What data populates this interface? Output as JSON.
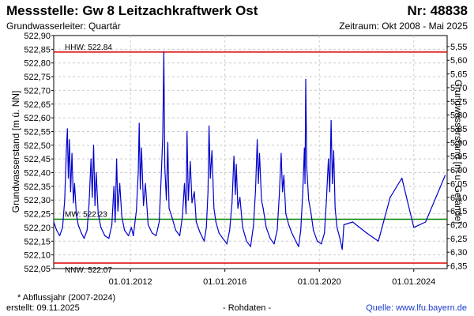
{
  "header": {
    "title": "Messstelle: Gw 8 Leitzachkraftwerk Ost",
    "number": "Nr: 48838",
    "aquifer": "Grundwasserleiter: Quartär",
    "period": "Zeitraum: Okt 2008 - Mai 2025"
  },
  "footer": {
    "note": "* Abflussjahr (2007-2024)",
    "created": "erstellt:  09.11.2025",
    "raw": "- Rohdaten -",
    "source": "Quelle: www.lfu.bayern.de"
  },
  "colors": {
    "series": "#0000cc",
    "hhw": "#dd0000",
    "nnw": "#dd0000",
    "mw": "#008000",
    "grid": "#cccccc"
  },
  "chart_data": {
    "type": "line",
    "ylabel": "Grundwasserstand [m ü. NN]",
    "y2label": "Grundwasserstand [m u. Gelände]",
    "ylim": [
      522.05,
      522.9
    ],
    "y2lim": [
      6.36,
      5.51
    ],
    "xlim": [
      "2008-10-01",
      "2025-05-31"
    ],
    "grid": true,
    "yticks": [
      "522,05",
      "522,10",
      "522,15",
      "522,20",
      "522,25",
      "522,30",
      "522,35",
      "522,40",
      "522,45",
      "522,50",
      "522,55",
      "522,60",
      "522,65",
      "522,70",
      "522,75",
      "522,80",
      "522,85",
      "522,90"
    ],
    "y2ticks": [
      "6,35",
      "6,30",
      "6,25",
      "6,20",
      "6,15",
      "6,10",
      "6,05",
      "6,00",
      "5,95",
      "5,90",
      "5,85",
      "5,80",
      "5,75",
      "5,70",
      "5,65",
      "5,60",
      "5,55"
    ],
    "xticks": [
      "01.01.2012",
      "01.01.2016",
      "01.01.2020",
      "01.01.2024"
    ],
    "reference_lines": [
      {
        "label": "HHW: 522.84",
        "value": 522.84
      },
      {
        "label": "MW: 522.23",
        "value": 522.23
      },
      {
        "label": "NNW: 522.07",
        "value": 522.07
      }
    ],
    "series": [
      {
        "points": [
          [
            "2008-10-01",
            522.22
          ],
          [
            "2008-11-15",
            522.19
          ],
          [
            "2009-01-01",
            522.17
          ],
          [
            "2009-02-15",
            522.2
          ],
          [
            "2009-03-20",
            522.3
          ],
          [
            "2009-04-15",
            522.48
          ],
          [
            "2009-05-01",
            522.56
          ],
          [
            "2009-05-15",
            522.38
          ],
          [
            "2009-06-01",
            522.52
          ],
          [
            "2009-06-20",
            522.33
          ],
          [
            "2009-07-10",
            522.47
          ],
          [
            "2009-08-01",
            522.29
          ],
          [
            "2009-08-20",
            522.36
          ],
          [
            "2009-09-15",
            522.25
          ],
          [
            "2009-10-15",
            522.21
          ],
          [
            "2009-12-01",
            522.18
          ],
          [
            "2010-01-15",
            522.16
          ],
          [
            "2010-03-01",
            522.19
          ],
          [
            "2010-04-01",
            522.29
          ],
          [
            "2010-05-01",
            522.45
          ],
          [
            "2010-05-20",
            522.31
          ],
          [
            "2010-06-10",
            522.5
          ],
          [
            "2010-07-01",
            522.28
          ],
          [
            "2010-07-20",
            522.4
          ],
          [
            "2010-08-20",
            522.25
          ],
          [
            "2010-10-01",
            522.2
          ],
          [
            "2010-12-01",
            522.17
          ],
          [
            "2011-02-01",
            522.16
          ],
          [
            "2011-03-20",
            522.21
          ],
          [
            "2011-04-20",
            522.35
          ],
          [
            "2011-05-10",
            522.22
          ],
          [
            "2011-06-01",
            522.45
          ],
          [
            "2011-06-20",
            522.26
          ],
          [
            "2011-07-20",
            522.36
          ],
          [
            "2011-08-20",
            522.24
          ],
          [
            "2011-10-01",
            522.19
          ],
          [
            "2011-12-01",
            522.17
          ],
          [
            "2012-01-15",
            522.2
          ],
          [
            "2012-02-15",
            522.17
          ],
          [
            "2012-04-01",
            522.26
          ],
          [
            "2012-05-01",
            522.4
          ],
          [
            "2012-05-15",
            522.58
          ],
          [
            "2012-06-01",
            522.34
          ],
          [
            "2012-06-20",
            522.49
          ],
          [
            "2012-07-20",
            522.28
          ],
          [
            "2012-08-20",
            522.36
          ],
          [
            "2012-10-01",
            522.21
          ],
          [
            "2012-12-01",
            522.18
          ],
          [
            "2013-02-01",
            522.17
          ],
          [
            "2013-03-20",
            522.22
          ],
          [
            "2013-04-20",
            522.38
          ],
          [
            "2013-05-15",
            522.53
          ],
          [
            "2013-06-01",
            522.84
          ],
          [
            "2013-06-15",
            522.42
          ],
          [
            "2013-07-10",
            522.3
          ],
          [
            "2013-08-01",
            522.51
          ],
          [
            "2013-08-20",
            522.27
          ],
          [
            "2013-10-01",
            522.24
          ],
          [
            "2013-12-01",
            522.19
          ],
          [
            "2014-02-01",
            522.17
          ],
          [
            "2014-03-15",
            522.24
          ],
          [
            "2014-04-15",
            522.36
          ],
          [
            "2014-05-10",
            522.25
          ],
          [
            "2014-05-25",
            522.55
          ],
          [
            "2014-06-15",
            522.3
          ],
          [
            "2014-07-15",
            522.44
          ],
          [
            "2014-08-10",
            522.29
          ],
          [
            "2014-09-15",
            522.33
          ],
          [
            "2014-10-15",
            522.22
          ],
          [
            "2014-12-15",
            522.18
          ],
          [
            "2015-02-15",
            522.15
          ],
          [
            "2015-03-20",
            522.2
          ],
          [
            "2015-04-15",
            522.33
          ],
          [
            "2015-05-01",
            522.57
          ],
          [
            "2015-05-20",
            522.38
          ],
          [
            "2015-06-15",
            522.48
          ],
          [
            "2015-07-15",
            522.27
          ],
          [
            "2015-08-15",
            522.22
          ],
          [
            "2015-10-01",
            522.18
          ],
          [
            "2015-12-01",
            522.16
          ],
          [
            "2016-02-01",
            522.14
          ],
          [
            "2016-03-15",
            522.19
          ],
          [
            "2016-04-20",
            522.29
          ],
          [
            "2016-05-20",
            522.46
          ],
          [
            "2016-06-10",
            522.32
          ],
          [
            "2016-06-25",
            522.43
          ],
          [
            "2016-07-20",
            522.27
          ],
          [
            "2016-08-20",
            522.31
          ],
          [
            "2016-10-01",
            522.2
          ],
          [
            "2016-12-01",
            522.15
          ],
          [
            "2017-02-01",
            522.13
          ],
          [
            "2017-03-20",
            522.21
          ],
          [
            "2017-04-20",
            522.34
          ],
          [
            "2017-05-15",
            522.52
          ],
          [
            "2017-06-01",
            522.36
          ],
          [
            "2017-06-20",
            522.47
          ],
          [
            "2017-07-20",
            522.3
          ],
          [
            "2017-08-15",
            522.27
          ],
          [
            "2017-10-01",
            522.2
          ],
          [
            "2017-12-01",
            522.16
          ],
          [
            "2018-02-01",
            522.14
          ],
          [
            "2018-03-20",
            522.19
          ],
          [
            "2018-04-20",
            522.31
          ],
          [
            "2018-05-20",
            522.47
          ],
          [
            "2018-06-10",
            522.33
          ],
          [
            "2018-07-01",
            522.39
          ],
          [
            "2018-08-01",
            522.25
          ],
          [
            "2018-09-15",
            522.21
          ],
          [
            "2018-11-01",
            522.18
          ],
          [
            "2019-01-01",
            522.15
          ],
          [
            "2019-02-15",
            522.13
          ],
          [
            "2019-03-20",
            522.19
          ],
          [
            "2019-04-20",
            522.33
          ],
          [
            "2019-05-15",
            522.49
          ],
          [
            "2019-05-25",
            522.36
          ],
          [
            "2019-06-05",
            522.74
          ],
          [
            "2019-06-20",
            522.42
          ],
          [
            "2019-07-20",
            522.3
          ],
          [
            "2019-08-20",
            522.26
          ],
          [
            "2019-10-01",
            522.19
          ],
          [
            "2019-12-01",
            522.15
          ],
          [
            "2020-02-01",
            522.14
          ],
          [
            "2020-03-20",
            522.18
          ],
          [
            "2020-04-20",
            522.3
          ],
          [
            "2020-05-20",
            522.45
          ],
          [
            "2020-06-10",
            522.33
          ],
          [
            "2020-07-01",
            522.59
          ],
          [
            "2020-07-20",
            522.36
          ],
          [
            "2020-08-10",
            522.48
          ],
          [
            "2020-09-01",
            522.27
          ],
          [
            "2020-10-01",
            522.2
          ],
          [
            "2020-11-15",
            522.16
          ],
          [
            "2020-12-20",
            522.12
          ],
          [
            "2021-01-15",
            522.21
          ],
          [
            "2021-06-01",
            522.22
          ],
          [
            "2022-01-01",
            522.18
          ],
          [
            "2022-07-01",
            522.15
          ],
          [
            "2023-01-01",
            522.31
          ],
          [
            "2023-07-01",
            522.38
          ],
          [
            "2024-01-01",
            522.2
          ],
          [
            "2024-07-01",
            522.22
          ],
          [
            "2025-05-01",
            522.39
          ]
        ]
      }
    ]
  }
}
